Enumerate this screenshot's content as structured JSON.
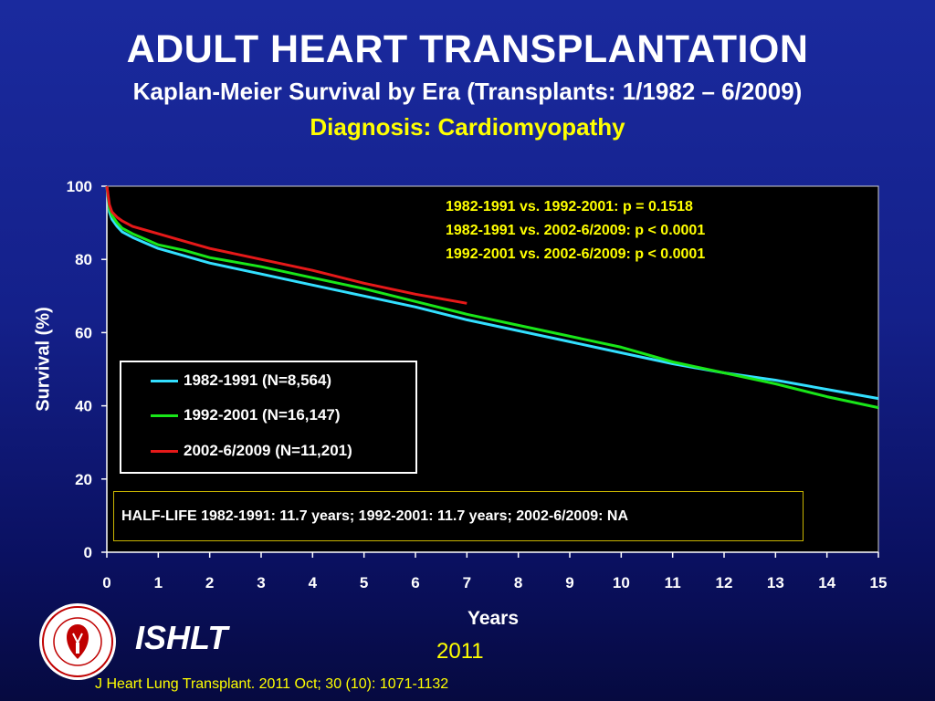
{
  "header": {
    "title": "ADULT HEART TRANSPLANTATION",
    "subtitle": "Kaplan-Meier Survival by Era (Transplants: 1/1982 – 6/2009)",
    "subtitle2": "Diagnosis: Cardiomyopathy"
  },
  "stats": {
    "line1": "1982-1991 vs. 1992-2001: p = 0.1518",
    "line2": "1982-1991 vs. 2002-6/2009: p < 0.0001",
    "line3": "1992-2001 vs. 2002-6/2009: p < 0.0001"
  },
  "halflife_text": "HALF-LIFE 1982-1991: 11.7 years; 1992-2001: 11.7 years; 2002-6/2009: NA",
  "footer": {
    "org": "ISHLT",
    "year": "2011",
    "citation": "J Heart Lung Transplant. 2011 Oct; 30 (10): 1071-1132",
    "logo_icon": "ishlt-seal-icon"
  },
  "colors": {
    "cyan": "#33dfff",
    "green": "#19e619",
    "red": "#e61919",
    "axis_text": "#ffffff",
    "stats_text": "#ffff00"
  },
  "chart_data": {
    "type": "line",
    "title": "ADULT HEART TRANSPLANTATION",
    "xlabel": "Years",
    "ylabel": "Survival (%)",
    "xlim": [
      0,
      15
    ],
    "ylim": [
      0,
      100
    ],
    "xticks": [
      0,
      1,
      2,
      3,
      4,
      5,
      6,
      7,
      8,
      9,
      10,
      11,
      12,
      13,
      14,
      15
    ],
    "yticks": [
      0,
      20,
      40,
      60,
      80,
      100
    ],
    "grid": false,
    "legend_position": "left-middle",
    "series": [
      {
        "name": "1982-1991 (N=8,564)",
        "color": "#33dfff",
        "x": [
          0,
          0.05,
          0.1,
          0.2,
          0.3,
          0.5,
          0.75,
          1,
          1.5,
          2,
          3,
          4,
          5,
          6,
          7,
          8,
          9,
          10,
          11,
          12,
          13,
          14,
          15
        ],
        "y": [
          100,
          93,
          91,
          89,
          87.5,
          86,
          84.5,
          83,
          81,
          79,
          76,
          73,
          70,
          67,
          63.5,
          60.5,
          57.5,
          54.5,
          51.5,
          49,
          47,
          44.5,
          42
        ]
      },
      {
        "name": "1992-2001 (N=16,147)",
        "color": "#19e619",
        "x": [
          0,
          0.05,
          0.1,
          0.2,
          0.3,
          0.5,
          0.75,
          1,
          1.5,
          2,
          3,
          4,
          5,
          6,
          7,
          8,
          9,
          10,
          11,
          12,
          13,
          14,
          15
        ],
        "y": [
          100,
          94,
          92,
          90,
          88.5,
          87,
          85.5,
          84,
          82.5,
          80.5,
          78,
          75,
          72,
          68.5,
          65,
          62,
          59,
          56,
          52,
          49,
          46,
          42.5,
          39.5
        ]
      },
      {
        "name": "2002-6/2009 (N=11,201)",
        "color": "#e61919",
        "x": [
          0,
          0.05,
          0.1,
          0.2,
          0.3,
          0.5,
          0.75,
          1,
          1.5,
          2,
          3,
          4,
          5,
          6,
          7
        ],
        "y": [
          100,
          95,
          93,
          91.5,
          90.5,
          89,
          88,
          87,
          85,
          83,
          80,
          77,
          73.5,
          70.5,
          68
        ]
      }
    ]
  }
}
